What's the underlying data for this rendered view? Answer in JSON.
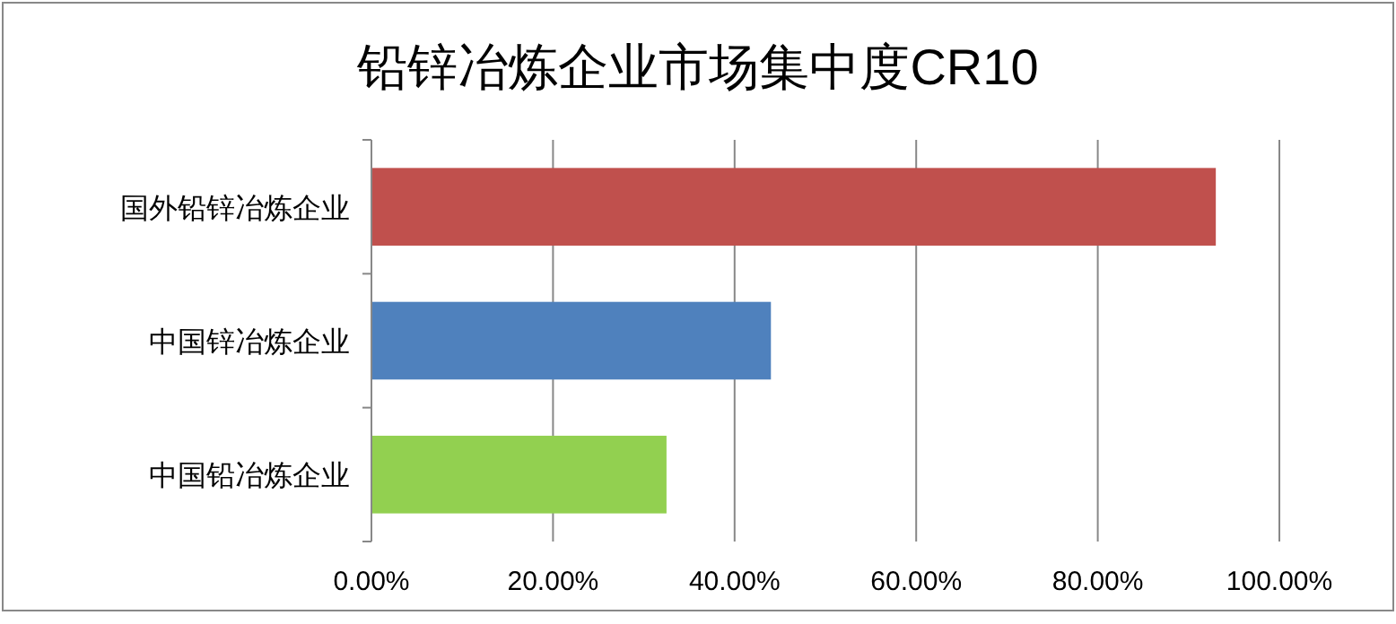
{
  "chart_data": {
    "type": "bar",
    "orientation": "horizontal",
    "title": "铅锌冶炼企业市场集中度CR10",
    "categories": [
      "国外铅锌冶炼企业",
      "中国锌冶炼企业",
      "中国铅冶炼企业"
    ],
    "values": [
      93,
      44,
      32.5
    ],
    "colors": [
      "#c0504d",
      "#4f81bd",
      "#92d050"
    ],
    "xlim": [
      0,
      100
    ],
    "xticks": [
      {
        "value": 0,
        "label": "0.00%"
      },
      {
        "value": 20,
        "label": "20.00%"
      },
      {
        "value": 40,
        "label": "40.00%"
      },
      {
        "value": 60,
        "label": "60.00%"
      },
      {
        "value": 80,
        "label": "80.00%"
      },
      {
        "value": 100,
        "label": "100.00%"
      }
    ],
    "grid": "x"
  }
}
